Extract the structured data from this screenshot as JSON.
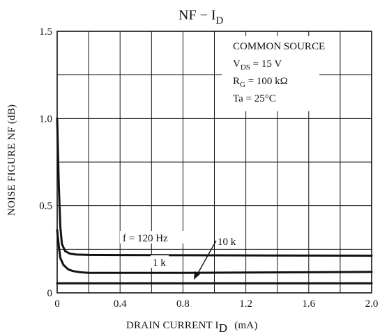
{
  "chart_data": {
    "type": "line",
    "title": "NF − I",
    "title_sub": "D",
    "xlabel": "DRAIN CURRENT I",
    "xlabel_sub": "D",
    "xlabel_unit": "(mA)",
    "ylabel": "NOISE FIGURE NF (dB)",
    "xlim": [
      0,
      2.0
    ],
    "ylim": [
      0,
      1.5
    ],
    "x_ticks": [
      "0",
      "0.4",
      "0.8",
      "1.2",
      "1.6",
      "2.0"
    ],
    "y_ticks": [
      "0",
      "0.5",
      "1.0",
      "1.5"
    ],
    "grid": true,
    "conditions": {
      "line1": "COMMON SOURCE",
      "line2_main": "V",
      "line2_sub": "DS",
      "line2_rest": " = 15 V",
      "line3_main": "R",
      "line3_sub": "G",
      "line3_rest": " = 100 kΩ",
      "line4": "Ta = 25°C"
    },
    "series": [
      {
        "name": "f = 120 Hz",
        "x": [
          0.0,
          0.01,
          0.02,
          0.03,
          0.05,
          0.08,
          0.12,
          0.2,
          0.4,
          0.8,
          1.2,
          1.6,
          2.0
        ],
        "y": [
          1.0,
          0.62,
          0.38,
          0.28,
          0.24,
          0.225,
          0.22,
          0.218,
          0.217,
          0.216,
          0.215,
          0.214,
          0.213
        ]
      },
      {
        "name": "1 k",
        "x": [
          0.0,
          0.01,
          0.02,
          0.04,
          0.07,
          0.1,
          0.15,
          0.2,
          0.4,
          0.8,
          1.2,
          1.6,
          2.0
        ],
        "y": [
          0.36,
          0.27,
          0.2,
          0.16,
          0.135,
          0.125,
          0.118,
          0.115,
          0.115,
          0.115,
          0.117,
          0.118,
          0.12
        ]
      },
      {
        "name": "10 k",
        "x": [
          0.0,
          0.4,
          0.8,
          1.2,
          1.6,
          2.0
        ],
        "y": [
          0.055,
          0.055,
          0.055,
          0.055,
          0.055,
          0.055
        ]
      }
    ],
    "labels": {
      "f120": "f = 120 Hz",
      "k1": "1 k",
      "k10": "10 k"
    }
  }
}
